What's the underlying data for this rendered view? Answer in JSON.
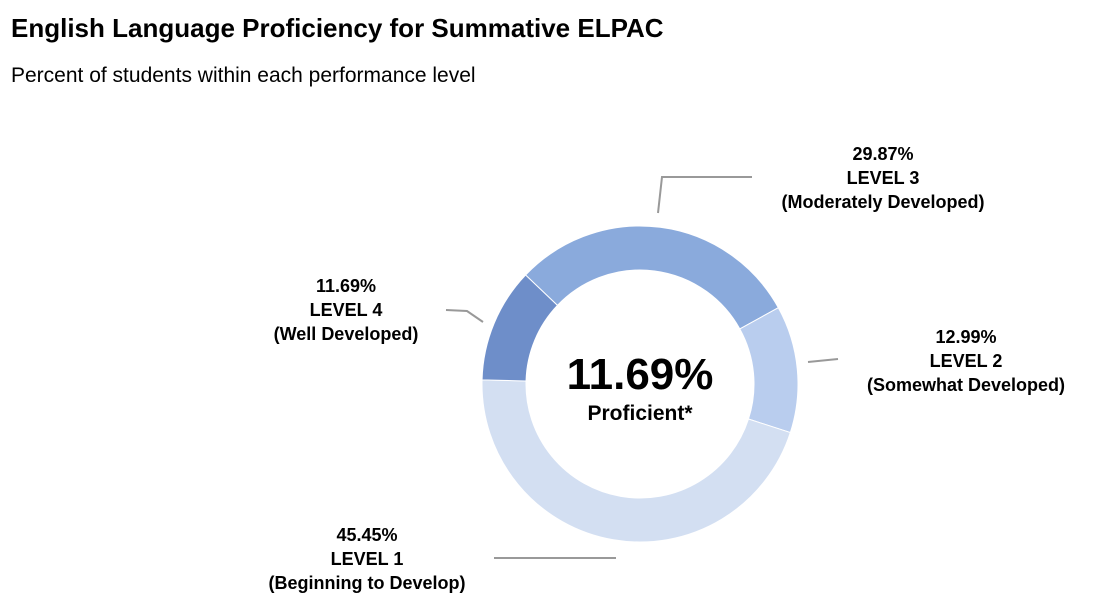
{
  "title": "English Language Proficiency for Summative ELPAC",
  "subtitle": "Percent of students within each performance level",
  "chart_data": {
    "type": "pie",
    "style": "donut",
    "title": "English Language Proficiency for Summative ELPAC",
    "subtitle": "Percent of students within each performance level",
    "center": {
      "value": "11.69%",
      "label": "Proficient*"
    },
    "slices": [
      {
        "value": 29.87,
        "percent_label": "29.87%",
        "level": "LEVEL 3",
        "desc": "(Moderately Developed)",
        "color": "#8aaadc"
      },
      {
        "value": 12.99,
        "percent_label": "12.99%",
        "level": "LEVEL 2",
        "desc": "(Somewhat Developed)",
        "color": "#b9cdee"
      },
      {
        "value": 45.45,
        "percent_label": "45.45%",
        "level": "LEVEL 1",
        "desc": "(Beginning to Develop)",
        "color": "#d3dff2"
      },
      {
        "value": 11.69,
        "percent_label": "11.69%",
        "level": "LEVEL 4",
        "desc": "(Well Developed)",
        "color": "#6e8ec9"
      }
    ],
    "legend": "none",
    "leader_line_color": "#999999"
  }
}
